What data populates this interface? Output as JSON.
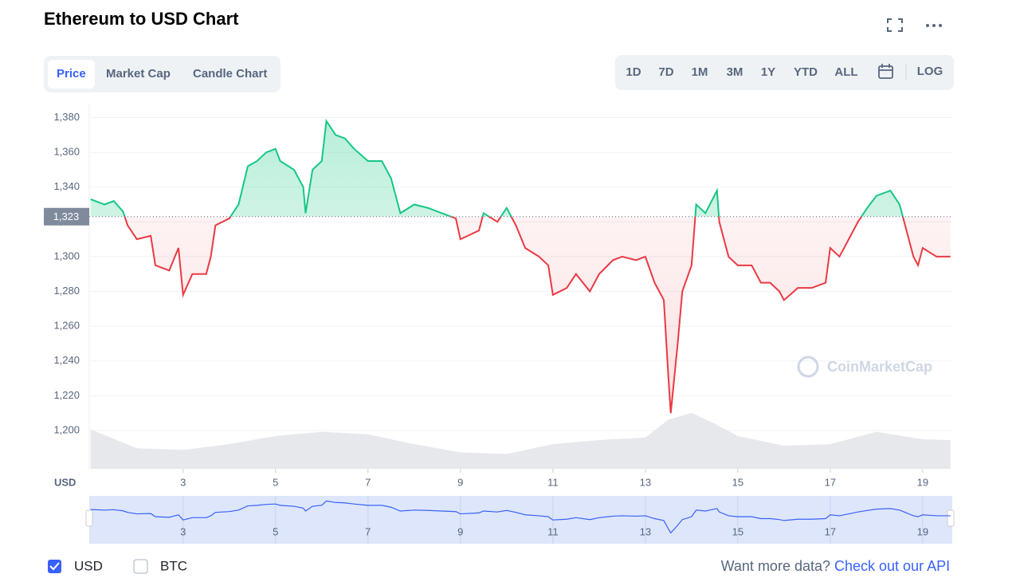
{
  "header": {
    "title": "Ethereum to USD Chart"
  },
  "tabs": [
    "Price",
    "Market Cap",
    "Candle Chart"
  ],
  "ranges": [
    "1D",
    "7D",
    "1M",
    "3M",
    "1Y",
    "YTD",
    "ALL"
  ],
  "log_button": "LOG",
  "chart_data": {
    "type": "line",
    "x": [
      1.0,
      1.3,
      1.5,
      1.7,
      1.8,
      2.0,
      2.3,
      2.4,
      2.7,
      2.9,
      3.0,
      3.2,
      3.5,
      3.6,
      3.7,
      4.0,
      4.2,
      4.4,
      4.6,
      4.8,
      5.0,
      5.1,
      5.4,
      5.6,
      5.65,
      5.8,
      6.0,
      6.1,
      6.3,
      6.5,
      6.7,
      7.0,
      7.3,
      7.5,
      7.7,
      8.0,
      8.3,
      8.6,
      8.9,
      9.0,
      9.4,
      9.5,
      9.8,
      10.0,
      10.2,
      10.4,
      10.7,
      10.9,
      11.0,
      11.3,
      11.5,
      11.8,
      12.0,
      12.3,
      12.5,
      12.8,
      13.0,
      13.2,
      13.4,
      13.5,
      13.55,
      13.7,
      13.8,
      14.0,
      14.1,
      14.3,
      14.55,
      14.6,
      14.8,
      15.0,
      15.3,
      15.5,
      15.7,
      15.9,
      16.0,
      16.3,
      16.6,
      16.9,
      17.0,
      17.2,
      17.4,
      17.6,
      17.8,
      18.0,
      18.3,
      18.5,
      18.6,
      18.8,
      18.9,
      19.0,
      19.3,
      19.6
    ],
    "values": [
      1333,
      1330,
      1332,
      1326,
      1318,
      1310,
      1312,
      1295,
      1292,
      1305,
      1278,
      1290,
      1290,
      1300,
      1318,
      1322,
      1330,
      1352,
      1355,
      1360,
      1362,
      1355,
      1350,
      1340,
      1325,
      1350,
      1355,
      1378,
      1370,
      1368,
      1362,
      1355,
      1355,
      1345,
      1325,
      1330,
      1328,
      1325,
      1322,
      1310,
      1315,
      1325,
      1320,
      1328,
      1318,
      1305,
      1300,
      1295,
      1278,
      1282,
      1290,
      1280,
      1290,
      1298,
      1300,
      1298,
      1300,
      1285,
      1275,
      1230,
      1210,
      1250,
      1280,
      1295,
      1330,
      1325,
      1338,
      1320,
      1300,
      1295,
      1295,
      1285,
      1285,
      1280,
      1275,
      1282,
      1282,
      1285,
      1305,
      1300,
      1310,
      1320,
      1328,
      1335,
      1338,
      1330,
      1320,
      1300,
      1295,
      1305,
      1300,
      1300
    ],
    "baseline": {
      "value": 1323,
      "label": "1,323"
    },
    "up_color": "#16c784",
    "down_color": "#ea3943",
    "volume": {
      "x": [
        1.0,
        2.0,
        3.0,
        4.0,
        5.0,
        6.0,
        7.0,
        8.0,
        9.0,
        10.0,
        11.0,
        12.0,
        13.0,
        13.5,
        14.0,
        14.5,
        15.0,
        16.0,
        17.0,
        18.0,
        19.0,
        19.6
      ],
      "values": [
        48,
        25,
        23,
        30,
        40,
        45,
        42,
        30,
        20,
        18,
        30,
        35,
        38,
        60,
        68,
        55,
        40,
        28,
        30,
        45,
        36,
        35
      ]
    },
    "xlim": [
      0.97,
      19.64
    ],
    "xticks": [
      3,
      5,
      7,
      9,
      11,
      13,
      15,
      17,
      19
    ],
    "ylim": [
      1178,
      1388
    ],
    "yticks": [
      {
        "value": 1200,
        "label": "1,200"
      },
      {
        "value": 1220,
        "label": "1,220"
      },
      {
        "value": 1240,
        "label": "1,240"
      },
      {
        "value": 1260,
        "label": "1,260"
      },
      {
        "value": 1280,
        "label": "1,280"
      },
      {
        "value": 1300,
        "label": "1,300"
      },
      {
        "value": 1320,
        "label": "1,320"
      },
      {
        "value": 1340,
        "label": "1,340"
      },
      {
        "value": 1360,
        "label": "1,360"
      },
      {
        "value": 1380,
        "label": "1,380"
      }
    ],
    "grid": true,
    "axis_unit": "USD",
    "watermark": "CoinMarketCap"
  },
  "footer": {
    "options": [
      "USD",
      "BTC"
    ],
    "prompt": "Want more data?",
    "link": "Check out our API"
  }
}
